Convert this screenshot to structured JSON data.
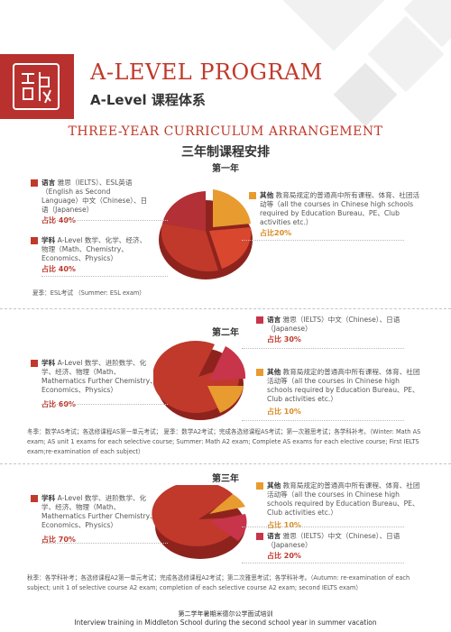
{
  "header": {
    "title_en": "A-LEVEL PROGRAM",
    "title_cn": "A-Level 课程体系",
    "logo_icon": "seal-logo-icon"
  },
  "section": {
    "title_en": "THREE-YEAR CURRICULUM ARRANGEMENT",
    "title_cn": "三年制课程安排"
  },
  "colors": {
    "red": "#c0392b",
    "dark_red": "#a82a24",
    "crimson": "#c8344a",
    "orange": "#e89b2f"
  },
  "years": [
    {
      "title": "第一年",
      "items": [
        {
          "name": "语言",
          "desc": " 雅思（IELTS）、ESL英语（English as Second Language）中文（Chinese）、日语（Japanese）",
          "pct": "占比 40%"
        },
        {
          "name": "学科",
          "desc": " A-Level 数学、化学、经济、物理（Math、Chemistry、Economics、Physics）",
          "pct": "占比 40%"
        },
        {
          "name": "其他",
          "desc": " 教育局规定的普通高中所有课程、体育、社团活动等（all the courses in Chinese high schools required by Education Bureau、PE、Club activities etc.）",
          "pct": "占比20%"
        }
      ],
      "note": "夏季：ESL考试 （Summer: ESL exam）"
    },
    {
      "title": "第二年",
      "items": [
        {
          "name": "语言",
          "desc": " 雅思（IELTS）中文（Chinese）、日语（Japanese）",
          "pct": "占比 30%"
        },
        {
          "name": "学科",
          "desc": " A-Level 数学、进阶数学、化学、经济、物理（Math、Mathematics Further Chemistry、Economics、Physics）",
          "pct": "占比 60%"
        },
        {
          "name": "其他",
          "desc": " 教育局规定的普通高中所有课程、体育、社团活动等（all the courses in Chinese high schools required by Education Bureau、PE、Club activities etc.）",
          "pct": "占比 10%"
        }
      ],
      "note": "冬季：数学AS考试；各选修课程AS第一单元考试； 夏季：数学A2考试；完成各选修课程AS考试；第一次雅思考试；各学科补考。（Winter: Math AS exam; AS unit 1 exams for each selective course; Summer: Math A2 exam; Complete AS exams for each elective course; First IELTS exam;re-examination of each subject）"
    },
    {
      "title": "第三年",
      "items": [
        {
          "name": "学科",
          "desc": " A-Level 数学、进阶数学、化学、经济、物理（Math、Mathematics Further Chemistry、Economics、Physics）",
          "pct": "占比 70%"
        },
        {
          "name": "其他",
          "desc": " 教育局规定的普通高中所有课程、体育、社团活动等（all the courses in Chinese high schools required by Education Bureau、PE、Club activities etc.）",
          "pct": "占比 10%"
        },
        {
          "name": "语言",
          "desc": " 雅思（IELTS）中文（Chinese）、日语（Japanese）",
          "pct": "占比 20%"
        }
      ],
      "note": "秋季：各学科补考；各选修课程A2第一单元考试；完成各选修课程A2考试；第二次雅思考试；各学科补考。（Autumn: re-examination of each subject; unit 1 of selective course A2 exam; completion of each selective course A2 exam; second IELTS exam）"
    }
  ],
  "footer": {
    "cn": "第二学年暑期米德尔公学面试培训",
    "en": "Interview training in Middleton School during the second school year in summer vacation"
  }
}
